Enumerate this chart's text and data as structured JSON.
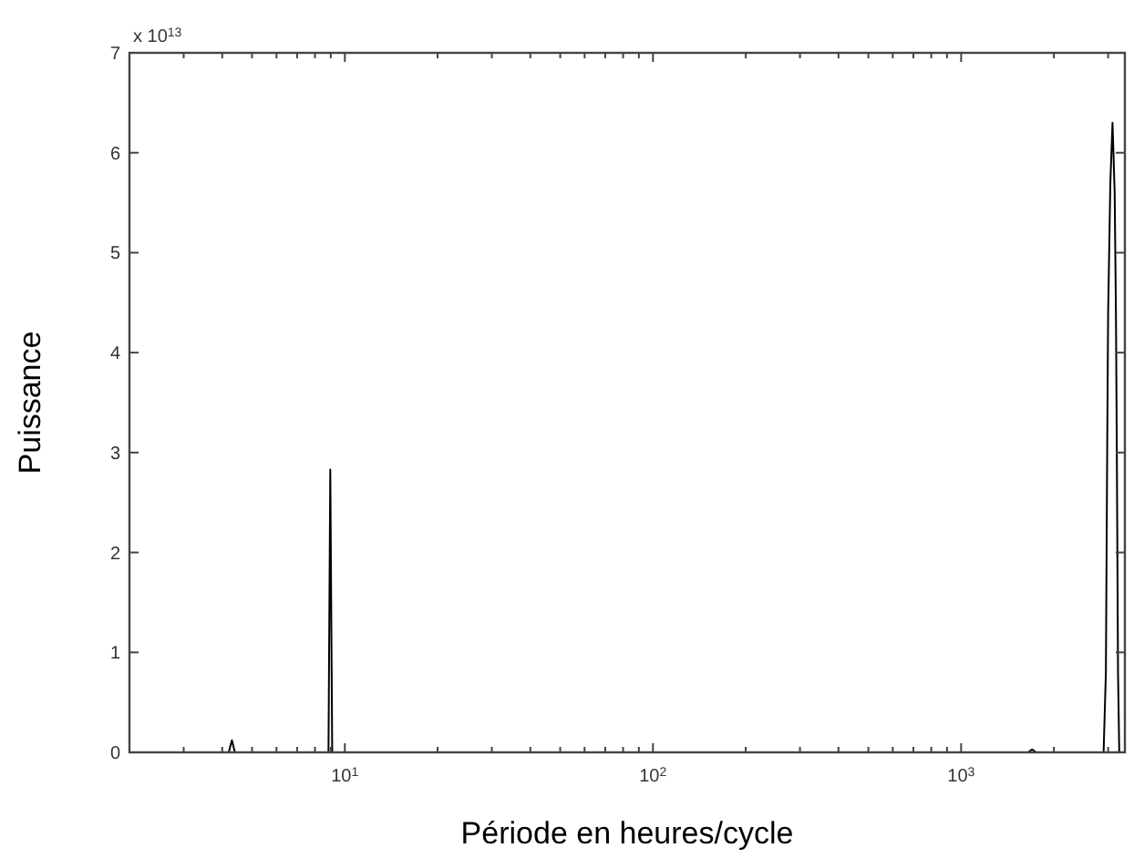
{
  "chart_data": {
    "type": "line",
    "xlabel": "Période en heures/cycle",
    "ylabel": "Puissance",
    "annotations": [
      "x 10$^{13}$"
    ],
    "log": "x",
    "grid": false,
    "marker": "none",
    "line_style": "solid",
    "xlim": [
      2,
      3400
    ],
    "ylim": [
      0,
      7
    ],
    "xticks": [
      {
        "value": 3,
        "label": null
      },
      {
        "value": 4,
        "label": null
      },
      {
        "value": 5,
        "label": null
      },
      {
        "value": 6,
        "label": null
      },
      {
        "value": 7,
        "label": null
      },
      {
        "value": 8,
        "label": null
      },
      {
        "value": 9,
        "label": null
      },
      {
        "value": 10,
        "label": "10$^{1}$"
      },
      {
        "value": 20,
        "label": null
      },
      {
        "value": 30,
        "label": null
      },
      {
        "value": 40,
        "label": null
      },
      {
        "value": 50,
        "label": null
      },
      {
        "value": 60,
        "label": null
      },
      {
        "value": 70,
        "label": null
      },
      {
        "value": 80,
        "label": null
      },
      {
        "value": 90,
        "label": null
      },
      {
        "value": 100,
        "label": "10$^{2}$"
      },
      {
        "value": 200,
        "label": null
      },
      {
        "value": 300,
        "label": null
      },
      {
        "value": 400,
        "label": null
      },
      {
        "value": 500,
        "label": null
      },
      {
        "value": 600,
        "label": null
      },
      {
        "value": 700,
        "label": null
      },
      {
        "value": 800,
        "label": null
      },
      {
        "value": 900,
        "label": null
      },
      {
        "value": 1000,
        "label": "10$^{3}$"
      },
      {
        "value": 2000,
        "label": null
      },
      {
        "value": 3000,
        "label": null
      }
    ],
    "yticks": [
      0,
      1,
      2,
      3,
      4,
      5,
      6,
      7
    ],
    "series": [
      {
        "color": "#000000",
        "x": [
          2,
          4.2,
          4.3,
          4.4,
          8.85,
          8.97,
          9.1,
          1650,
          1700,
          1750,
          2900,
          2950,
          2980,
          3000,
          3050,
          3100,
          3150,
          3180,
          3200,
          3230,
          3260,
          3400
        ],
        "values": [
          0,
          0,
          0.12,
          0,
          0,
          2.83,
          0,
          0,
          0.03,
          0,
          0,
          0.8,
          3.1,
          4.4,
          5.7,
          6.3,
          5.6,
          4.4,
          3.1,
          0.8,
          0,
          0
        ]
      }
    ]
  }
}
